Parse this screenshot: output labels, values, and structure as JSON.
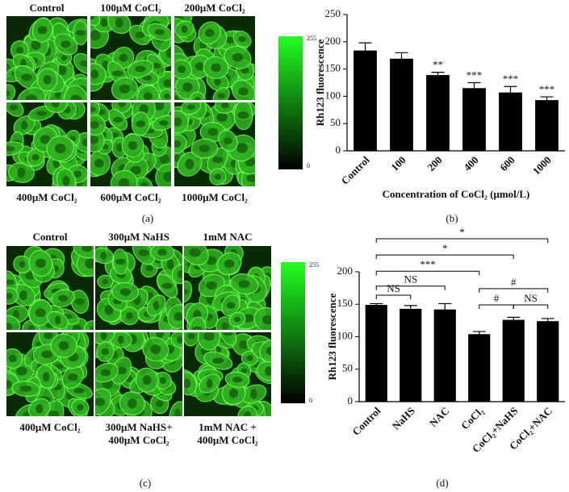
{
  "panel_a": {
    "label": "(a)",
    "captions_top": [
      "Control",
      "100μM CoCl₂",
      "200μM CoCl₂"
    ],
    "captions_bottom": [
      "400μM CoCl₂",
      "600μM CoCl₂",
      "1000μM CoCl₂"
    ],
    "colorbar": {
      "max": "255",
      "min": "0"
    }
  },
  "panel_b": {
    "label": "(b)"
  },
  "panel_c": {
    "label": "(c)",
    "captions_top": [
      "Control",
      "300μM NaHS",
      "1mM NAC"
    ],
    "captions_bottom": [
      [
        "400μM CoCl₂"
      ],
      [
        "300μM NaHS+",
        "400μM CoCl₂"
      ],
      [
        "1mM NAC +",
        "400μM CoCl₂"
      ]
    ],
    "colorbar": {
      "max": "255",
      "min": "0"
    }
  },
  "panel_d": {
    "label": "(d)"
  },
  "chart_data": [
    {
      "type": "bar",
      "y_label": "Rh123 fluorescence",
      "x_label": "Concentration of CoCl₂ (μmol/L)",
      "categories": [
        "Control",
        "100",
        "200",
        "400",
        "600",
        "1000"
      ],
      "values": [
        184,
        169,
        139,
        115,
        107,
        93
      ],
      "errors": [
        14,
        11,
        5,
        10,
        11,
        6
      ],
      "significance": [
        null,
        null,
        "**",
        "***",
        "***",
        "***"
      ],
      "color": "#000000",
      "ylim": [
        0,
        250
      ],
      "yticks": [
        0,
        50,
        100,
        150,
        200,
        250
      ]
    },
    {
      "type": "bar",
      "y_label": "Rh123 fluorescence",
      "categories": [
        "Control",
        "NaHS",
        "NAC",
        "CoCl₂",
        "CoCl₂+NaHS",
        "CoCl₂+NAC"
      ],
      "values": [
        149,
        143,
        142,
        104,
        126,
        124
      ],
      "errors": [
        2,
        5,
        9,
        4,
        4,
        4
      ],
      "comparisons": [
        {
          "from": 0,
          "to": 5,
          "label": "*",
          "y": 251
        },
        {
          "from": 0,
          "to": 4,
          "label": "*",
          "y": 226
        },
        {
          "from": 0,
          "to": 3,
          "label": "***",
          "y": 201
        },
        {
          "from": 0,
          "to": 2,
          "label": "NS",
          "y": 178
        },
        {
          "from": 0,
          "to": 1,
          "label": "NS",
          "y": 164
        },
        {
          "from": 3,
          "to": 5,
          "label": "#",
          "y": 174
        },
        {
          "from": 3,
          "to": 4,
          "label": "#",
          "y": 149
        },
        {
          "from": 4,
          "to": 5,
          "label": "NS",
          "y": 149
        }
      ],
      "color": "#000000",
      "ylim": [
        0,
        200
      ],
      "yticks": [
        0,
        50,
        100,
        150,
        200
      ]
    }
  ]
}
